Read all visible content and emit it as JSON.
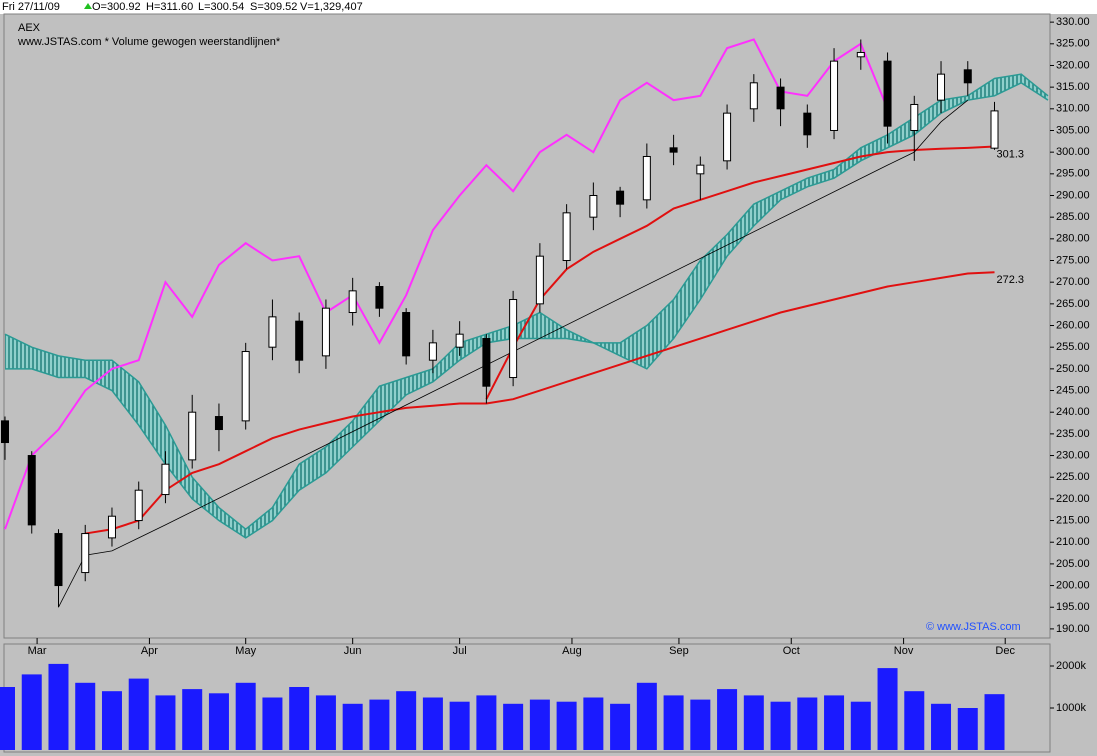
{
  "chart_data": {
    "type": "candlestick",
    "header": [
      "Fri 27/11/09",
      "O=300.92",
      "H=311.60",
      "L=300.54",
      "S=309.52",
      "V=1,329,407"
    ],
    "title": "AEX",
    "subtitle": "www.JSTAS.com * Volume gewogen weerstandlijnen*",
    "watermark": "© www.JSTAS.com",
    "x": [
      0,
      5,
      10,
      15,
      20,
      25,
      30,
      35,
      40,
      45,
      50,
      55,
      60,
      65,
      70,
      75,
      80,
      85,
      90,
      95,
      100,
      105,
      110,
      115,
      120,
      125,
      130,
      135,
      140,
      145,
      150,
      155,
      160,
      165,
      170,
      175,
      180,
      185,
      190,
      195
    ],
    "xlim": [
      0,
      195
    ],
    "xticks": [
      {
        "value": 6,
        "label": "Mar"
      },
      {
        "value": 27,
        "label": "Apr"
      },
      {
        "value": 45,
        "label": "May"
      },
      {
        "value": 65,
        "label": "Jun"
      },
      {
        "value": 85,
        "label": "Jul"
      },
      {
        "value": 106,
        "label": "Aug"
      },
      {
        "value": 126,
        "label": "Sep"
      },
      {
        "value": 147,
        "label": "Oct"
      },
      {
        "value": 168,
        "label": "Nov"
      },
      {
        "value": 187,
        "label": "Dec"
      }
    ],
    "ylim": [
      187.9,
      332.8
    ],
    "yticks": [
      {
        "value": 190,
        "label": "190.00"
      },
      {
        "value": 195,
        "label": "195.00"
      },
      {
        "value": 200,
        "label": "200.00"
      },
      {
        "value": 205,
        "label": "205.00"
      },
      {
        "value": 210,
        "label": "210.00"
      },
      {
        "value": 215,
        "label": "215.00"
      },
      {
        "value": 220,
        "label": "220.00"
      },
      {
        "value": 225,
        "label": "225.00"
      },
      {
        "value": 230,
        "label": "230.00"
      },
      {
        "value": 235,
        "label": "235.00"
      },
      {
        "value": 240,
        "label": "240.00"
      },
      {
        "value": 245,
        "label": "245.00"
      },
      {
        "value": 250,
        "label": "250.00"
      },
      {
        "value": 255,
        "label": "255.00"
      },
      {
        "value": 260,
        "label": "260.00"
      },
      {
        "value": 265,
        "label": "265.00"
      },
      {
        "value": 270,
        "label": "270.00"
      },
      {
        "value": 275,
        "label": "275.00"
      },
      {
        "value": 280,
        "label": "280.00"
      },
      {
        "value": 285,
        "label": "285.00"
      },
      {
        "value": 290,
        "label": "290.00"
      },
      {
        "value": 295,
        "label": "295.00"
      },
      {
        "value": 300,
        "label": "300.00"
      },
      {
        "value": 305,
        "label": "305.00"
      },
      {
        "value": 310,
        "label": "310.00"
      },
      {
        "value": 315,
        "label": "315.00"
      },
      {
        "value": 320,
        "label": "320.00"
      },
      {
        "value": 325,
        "label": "325.00"
      },
      {
        "value": 330,
        "label": "330.00"
      }
    ],
    "candles": {
      "open": [
        238,
        230,
        212,
        203,
        211,
        215,
        221,
        229,
        239,
        238,
        255,
        261,
        253,
        263,
        269,
        263,
        252,
        255,
        257,
        248,
        265,
        275,
        285,
        291,
        289,
        301,
        295,
        298,
        310,
        315,
        309,
        305,
        322,
        321,
        305,
        312,
        319,
        300.92,
        null,
        null
      ],
      "high": [
        239,
        231,
        213,
        214,
        218,
        224,
        231,
        244,
        242,
        256,
        266,
        263,
        266,
        271,
        270,
        264,
        259,
        261,
        258,
        268,
        279,
        288,
        293,
        292,
        302,
        304,
        299,
        311,
        318,
        317,
        311,
        324,
        326,
        323,
        313,
        321,
        321,
        311.6,
        null,
        null
      ],
      "low": [
        229,
        212,
        195,
        201,
        209,
        213,
        219,
        227,
        231,
        236,
        252,
        249,
        250,
        260,
        262,
        251,
        249,
        253,
        242,
        246,
        263,
        273,
        282,
        285,
        287,
        297,
        289,
        296,
        307,
        306,
        301,
        303,
        319,
        302,
        298,
        309,
        313,
        300.54,
        null,
        null
      ],
      "close": [
        233,
        214,
        200,
        212,
        216,
        222,
        228,
        240,
        236,
        254,
        262,
        252,
        264,
        268,
        264,
        253,
        256,
        258,
        246,
        266,
        276,
        286,
        290,
        288,
        299,
        300,
        297,
        309,
        316,
        310,
        304,
        321,
        323,
        306,
        311,
        318,
        316,
        309.52,
        null,
        null
      ]
    },
    "cloud": {
      "color": "#2a9a94",
      "upper": [
        258,
        255,
        253,
        252,
        252,
        247,
        237,
        225,
        218,
        213,
        218,
        228,
        232,
        238,
        246,
        248,
        250,
        256,
        258,
        260,
        263,
        259,
        256,
        256,
        260,
        266,
        275,
        281,
        288,
        291,
        294,
        296,
        301,
        304,
        308,
        312,
        313,
        317,
        318,
        313
      ],
      "lower": [
        250,
        250,
        248,
        248,
        245,
        237,
        228,
        220,
        215,
        211,
        215,
        222,
        226,
        232,
        238,
        244,
        247,
        252,
        256,
        257,
        257,
        257,
        256,
        253,
        250,
        257,
        266,
        276,
        283,
        289,
        292,
        294,
        298,
        301,
        304,
        309,
        312,
        313,
        316,
        312
      ]
    },
    "lines": [
      {
        "color": "#ff30ff",
        "values": [
          213,
          230,
          236,
          245,
          250,
          252,
          270,
          262,
          274,
          279,
          275,
          276,
          263,
          267,
          256,
          267,
          282,
          290,
          297,
          291,
          300,
          304,
          300,
          312,
          316,
          312,
          313,
          324,
          326,
          314,
          313,
          321,
          325,
          310,
          null,
          null,
          null,
          null,
          null,
          null
        ]
      },
      {
        "color": "#e01010",
        "values": [
          null,
          null,
          null,
          212,
          213,
          215,
          222,
          226,
          228,
          231,
          234,
          236,
          237.5,
          239,
          240,
          241,
          241.5,
          242,
          242,
          243,
          245,
          247,
          249,
          251,
          253,
          255,
          257,
          259,
          261,
          263,
          264.5,
          266,
          267.5,
          269,
          270,
          271,
          272,
          272.3,
          null,
          null
        ],
        "end_label": "272.3"
      },
      {
        "color": "#e01010",
        "values": [
          null,
          null,
          null,
          null,
          null,
          null,
          null,
          null,
          null,
          null,
          null,
          null,
          null,
          null,
          null,
          null,
          null,
          null,
          243,
          255,
          266,
          273,
          277,
          280,
          283,
          287,
          289,
          291,
          293,
          294.5,
          296,
          297.5,
          299,
          300,
          300.5,
          300.8,
          301,
          301.3,
          null,
          null
        ],
        "end_label": "301.3"
      },
      {
        "color": "#000000",
        "values": [
          null,
          null,
          195,
          207,
          208,
          211,
          214,
          null,
          null,
          null,
          null,
          null,
          null,
          null,
          null,
          null,
          null,
          null,
          null,
          null,
          null,
          null,
          null,
          null,
          null,
          null,
          null,
          null,
          null,
          null,
          null,
          null,
          null,
          297,
          300,
          307,
          312,
          null,
          null,
          null
        ]
      }
    ],
    "volume": {
      "color": "#1a1aff",
      "values": [
        1500,
        1800,
        2050,
        1600,
        1400,
        1700,
        1300,
        1450,
        1350,
        1600,
        1250,
        1500,
        1300,
        1100,
        1200,
        1400,
        1250,
        1150,
        1300,
        1100,
        1200,
        1150,
        1250,
        1100,
        1600,
        1300,
        1200,
        1450,
        1300,
        1150,
        1250,
        1300,
        1150,
        1950,
        1400,
        1100,
        1000,
        1329.407,
        null,
        null
      ],
      "ylim": [
        0,
        2500
      ],
      "yticks": [
        {
          "value": 1000,
          "label": "1000k"
        },
        {
          "value": 2000,
          "label": "2000k"
        }
      ]
    }
  }
}
